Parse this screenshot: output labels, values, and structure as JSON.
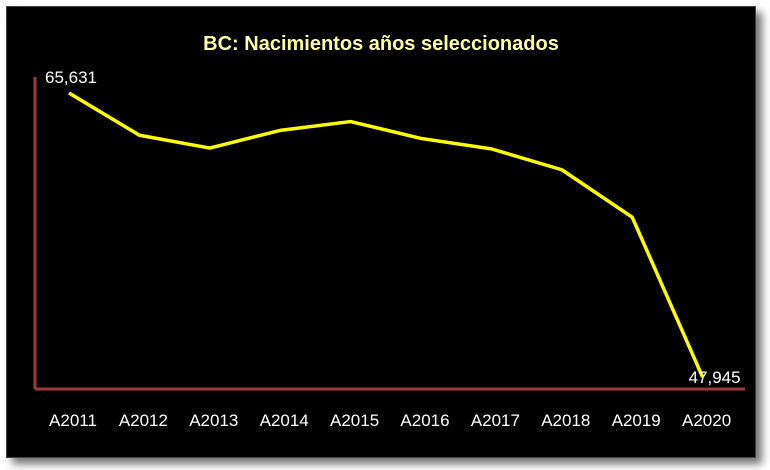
{
  "chart_data": {
    "type": "line",
    "title": "BC: Nacimientos años seleccionados",
    "categories": [
      "A2011",
      "A2012",
      "A2013",
      "A2014",
      "A2015",
      "A2016",
      "A2017",
      "A2018",
      "A2019",
      "A2020"
    ],
    "series": [
      {
        "values": [
          65631,
          63000,
          62200,
          63300,
          63850,
          62800,
          62150,
          60850,
          57900,
          47945
        ]
      }
    ],
    "data_labels": [
      "65,631",
      "",
      "",
      "",
      "",
      "",
      "",
      "",
      "",
      "47,945"
    ],
    "ylim": [
      48200,
      66250
    ],
    "grid": false,
    "legend": "none",
    "colors": {
      "background": "#000000",
      "line": "#ffff00",
      "axis": "#9c3a3a",
      "title": "#ffffaa",
      "text": "#ffffff"
    }
  }
}
